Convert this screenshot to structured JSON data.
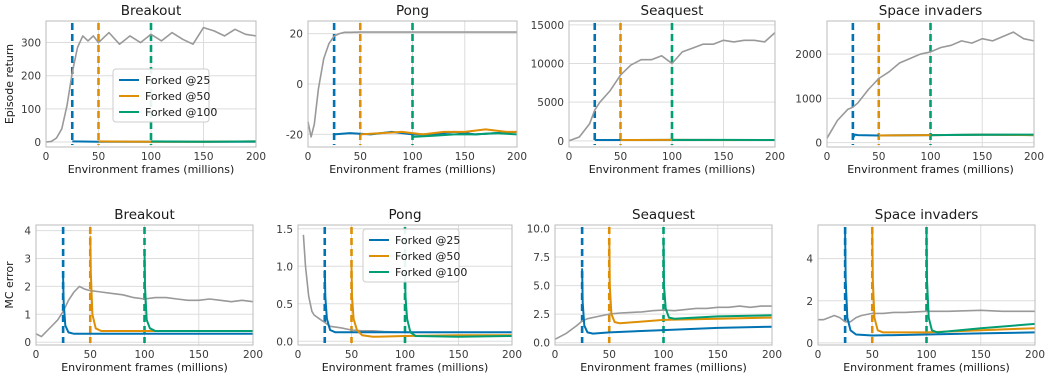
{
  "colors": {
    "base": "#999999",
    "f25": "#0173b2",
    "f50": "#de8f05",
    "f100": "#029e73",
    "grid": "#dddddd"
  },
  "chart_data": [
    {
      "type": "line",
      "title": "Breakout",
      "xlabel": "Environment frames (millions)",
      "ylabel": "Episode return",
      "xlim": [
        0,
        200
      ],
      "ylim": [
        -15,
        365
      ],
      "xticks": [
        0,
        50,
        100,
        150,
        200
      ],
      "yticks": [
        0,
        100,
        200,
        300
      ],
      "vlines": [
        25,
        50,
        100
      ],
      "legend": {
        "position": "center-left",
        "entries": [
          "Forked @25",
          "Forked @50",
          "Forked @100"
        ]
      },
      "series": [
        {
          "color": "base",
          "x": [
            0,
            5,
            10,
            15,
            20,
            25,
            30,
            35,
            40,
            45,
            50,
            60,
            70,
            80,
            90,
            100,
            110,
            120,
            130,
            140,
            150,
            160,
            170,
            180,
            190,
            200
          ],
          "y": [
            0,
            2,
            12,
            40,
            110,
            210,
            285,
            320,
            305,
            320,
            300,
            330,
            295,
            320,
            300,
            325,
            305,
            330,
            310,
            295,
            345,
            335,
            320,
            340,
            325,
            320
          ]
        },
        {
          "color": "f25",
          "x": [
            25,
            50,
            100,
            150,
            200
          ],
          "y": [
            2,
            1,
            1,
            1,
            1
          ]
        },
        {
          "color": "f50",
          "x": [
            50,
            100,
            150,
            200
          ],
          "y": [
            2,
            1,
            1,
            2
          ]
        },
        {
          "color": "f100",
          "x": [
            100,
            150,
            200
          ],
          "y": [
            2,
            1,
            2
          ]
        }
      ]
    },
    {
      "type": "line",
      "title": "Pong",
      "xlabel": "Environment frames (millions)",
      "ylabel": "",
      "xlim": [
        0,
        200
      ],
      "ylim": [
        -25,
        25
      ],
      "xticks": [
        0,
        50,
        100,
        150,
        200
      ],
      "yticks": [
        -20,
        0,
        20
      ],
      "vlines": [
        25,
        50,
        100
      ],
      "series": [
        {
          "color": "base",
          "x": [
            0,
            3,
            6,
            10,
            15,
            20,
            25,
            30,
            35,
            40,
            50,
            100,
            150,
            200
          ],
          "y": [
            -15,
            -21,
            -16,
            -2,
            10,
            16,
            19,
            20,
            20.5,
            20.5,
            20.6,
            20.6,
            20.6,
            20.6
          ]
        },
        {
          "color": "f25",
          "x": [
            25,
            40,
            60,
            80,
            100,
            120,
            140,
            160,
            180,
            200
          ],
          "y": [
            -20,
            -19.5,
            -20,
            -19,
            -20,
            -20,
            -19,
            -20,
            -19.5,
            -19
          ]
        },
        {
          "color": "f50",
          "x": [
            50,
            70,
            90,
            110,
            130,
            150,
            170,
            190,
            200
          ],
          "y": [
            -20,
            -19.5,
            -19,
            -20,
            -19,
            -19,
            -18,
            -19,
            -19
          ]
        },
        {
          "color": "f100",
          "x": [
            100,
            120,
            140,
            160,
            180,
            200
          ],
          "y": [
            -21,
            -20.5,
            -20,
            -20,
            -19.5,
            -20
          ]
        }
      ]
    },
    {
      "type": "line",
      "title": "Seaquest",
      "xlabel": "Environment frames (millions)",
      "ylabel": "",
      "xlim": [
        0,
        200
      ],
      "ylim": [
        -800,
        15500
      ],
      "xticks": [
        0,
        50,
        100,
        150,
        200
      ],
      "yticks": [
        0,
        5000,
        10000,
        15000
      ],
      "vlines": [
        25,
        50,
        100
      ],
      "series": [
        {
          "color": "base",
          "x": [
            0,
            10,
            20,
            25,
            30,
            40,
            50,
            60,
            70,
            80,
            90,
            100,
            110,
            120,
            130,
            140,
            150,
            160,
            170,
            180,
            190,
            200
          ],
          "y": [
            0,
            500,
            2200,
            4000,
            5000,
            6500,
            8500,
            9800,
            10500,
            10500,
            11000,
            10000,
            11500,
            12000,
            12500,
            12500,
            13000,
            12800,
            13000,
            13000,
            12800,
            14000
          ]
        },
        {
          "color": "f25",
          "x": [
            25,
            50,
            100,
            150,
            200
          ],
          "y": [
            100,
            100,
            120,
            100,
            100
          ]
        },
        {
          "color": "f50",
          "x": [
            50,
            100,
            150,
            200
          ],
          "y": [
            100,
            120,
            110,
            100
          ]
        },
        {
          "color": "f100",
          "x": [
            100,
            150,
            200
          ],
          "y": [
            100,
            120,
            100
          ]
        }
      ]
    },
    {
      "type": "line",
      "title": "Space invaders",
      "xlabel": "Environment frames (millions)",
      "ylabel": "",
      "xlim": [
        0,
        200
      ],
      "ylim": [
        -100,
        2750
      ],
      "xticks": [
        0,
        50,
        100,
        150,
        200
      ],
      "yticks": [
        0,
        1000,
        2000
      ],
      "vlines": [
        25,
        50,
        100
      ],
      "series": [
        {
          "color": "base",
          "x": [
            0,
            5,
            10,
            20,
            25,
            30,
            40,
            50,
            60,
            70,
            80,
            90,
            100,
            110,
            120,
            130,
            140,
            150,
            160,
            170,
            180,
            190,
            200
          ],
          "y": [
            100,
            300,
            500,
            750,
            800,
            900,
            1200,
            1450,
            1600,
            1800,
            1900,
            2000,
            2050,
            2150,
            2200,
            2300,
            2250,
            2350,
            2300,
            2400,
            2500,
            2350,
            2300
          ]
        },
        {
          "color": "f25",
          "x": [
            25,
            27,
            30,
            50,
            100,
            150,
            200
          ],
          "y": [
            100,
            180,
            170,
            160,
            170,
            180,
            170
          ]
        },
        {
          "color": "f50",
          "x": [
            50,
            100,
            150,
            200
          ],
          "y": [
            160,
            170,
            175,
            170
          ]
        },
        {
          "color": "f100",
          "x": [
            100,
            150,
            200
          ],
          "y": [
            170,
            175,
            180
          ]
        }
      ]
    },
    {
      "type": "line",
      "title": "Breakout",
      "xlabel": "Environment frames (millions)",
      "ylabel": "MC error",
      "xlim": [
        0,
        200
      ],
      "ylim": [
        -0.1,
        4.2
      ],
      "xticks": [
        0,
        50,
        100,
        150,
        200
      ],
      "yticks": [
        0,
        1,
        2,
        3,
        4
      ],
      "vlines": [
        25,
        50,
        100
      ],
      "series": [
        {
          "color": "base",
          "x": [
            0,
            5,
            10,
            15,
            20,
            25,
            30,
            35,
            40,
            45,
            50,
            60,
            70,
            80,
            90,
            100,
            110,
            120,
            130,
            140,
            150,
            160,
            170,
            180,
            190,
            200
          ],
          "y": [
            0.3,
            0.2,
            0.4,
            0.6,
            0.8,
            1.1,
            1.5,
            1.8,
            2.0,
            1.9,
            1.85,
            1.8,
            1.75,
            1.7,
            1.6,
            1.55,
            1.6,
            1.6,
            1.55,
            1.5,
            1.5,
            1.55,
            1.5,
            1.45,
            1.5,
            1.45
          ]
        },
        {
          "color": "f25",
          "x": [
            25,
            25.5,
            27,
            30,
            35,
            50,
            100,
            150,
            200
          ],
          "y": [
            2.3,
            1.4,
            0.6,
            0.35,
            0.3,
            0.3,
            0.3,
            0.3,
            0.3
          ]
        },
        {
          "color": "f50",
          "x": [
            50,
            50.5,
            52,
            55,
            60,
            100,
            150,
            200
          ],
          "y": [
            3.8,
            2.5,
            1.0,
            0.5,
            0.4,
            0.4,
            0.4,
            0.4
          ]
        },
        {
          "color": "f100",
          "x": [
            100,
            100.5,
            102,
            105,
            110,
            150,
            200
          ],
          "y": [
            3.3,
            2.0,
            0.8,
            0.5,
            0.4,
            0.4,
            0.4
          ]
        }
      ]
    },
    {
      "type": "line",
      "title": "Pong",
      "xlabel": "Environment frames (millions)",
      "ylabel": "",
      "xlim": [
        0,
        200
      ],
      "ylim": [
        -0.05,
        1.55
      ],
      "xticks": [
        0,
        50,
        100,
        150,
        200
      ],
      "yticks": [
        0.0,
        0.5,
        1.0,
        1.5
      ],
      "vlines": [
        25,
        50,
        100
      ],
      "legend": {
        "position": "top-center",
        "entries": [
          "Forked @25",
          "Forked @50",
          "Forked @100"
        ]
      },
      "series": [
        {
          "color": "base",
          "x": [
            5,
            7,
            10,
            13,
            15,
            20,
            25,
            30,
            40,
            50,
            60,
            70,
            80,
            100,
            120,
            150,
            200
          ],
          "y": [
            1.42,
            1.0,
            0.6,
            0.4,
            0.35,
            0.3,
            0.25,
            0.2,
            0.18,
            0.15,
            0.14,
            0.14,
            0.13,
            0.12,
            0.12,
            0.12,
            0.12
          ]
        },
        {
          "color": "f25",
          "x": [
            25,
            25.5,
            27,
            30,
            35,
            50,
            100,
            150,
            200
          ],
          "y": [
            0.95,
            0.6,
            0.3,
            0.15,
            0.12,
            0.12,
            0.12,
            0.12,
            0.12
          ]
        },
        {
          "color": "f50",
          "x": [
            50,
            50.5,
            52,
            55,
            60,
            70,
            100,
            150,
            200
          ],
          "y": [
            1.0,
            0.6,
            0.3,
            0.15,
            0.08,
            0.06,
            0.07,
            0.08,
            0.08
          ]
        },
        {
          "color": "f100",
          "x": [
            100,
            100.5,
            102,
            105,
            110,
            150,
            200
          ],
          "y": [
            0.9,
            0.6,
            0.3,
            0.12,
            0.07,
            0.06,
            0.07
          ]
        }
      ]
    },
    {
      "type": "line",
      "title": "Seaquest",
      "xlabel": "Environment frames (millions)",
      "ylabel": "",
      "xlim": [
        0,
        200
      ],
      "ylim": [
        -0.2,
        10.3
      ],
      "xticks": [
        0,
        50,
        100,
        150,
        200
      ],
      "yticks": [
        0.0,
        2.5,
        5.0,
        7.5,
        10.0
      ],
      "vlines": [
        25,
        50,
        100
      ],
      "series": [
        {
          "color": "base",
          "x": [
            0,
            10,
            20,
            25,
            30,
            40,
            50,
            60,
            70,
            80,
            90,
            100,
            110,
            120,
            130,
            140,
            150,
            160,
            170,
            180,
            190,
            200
          ],
          "y": [
            0.3,
            0.8,
            1.5,
            1.9,
            2.1,
            2.3,
            2.5,
            2.6,
            2.65,
            2.7,
            2.8,
            2.85,
            2.8,
            2.9,
            3.0,
            3.0,
            3.1,
            3.1,
            3.2,
            3.1,
            3.2,
            3.2
          ]
        },
        {
          "color": "f25",
          "x": [
            25,
            25.5,
            27,
            30,
            35,
            50,
            100,
            150,
            200
          ],
          "y": [
            6.5,
            3.5,
            1.5,
            0.9,
            0.8,
            0.9,
            1.1,
            1.3,
            1.4
          ]
        },
        {
          "color": "f50",
          "x": [
            50,
            50.5,
            52,
            55,
            60,
            100,
            150,
            200
          ],
          "y": [
            9.0,
            5.0,
            2.5,
            1.8,
            1.7,
            2.0,
            2.1,
            2.2
          ]
        },
        {
          "color": "f100",
          "x": [
            100,
            100.5,
            102,
            105,
            110,
            150,
            200
          ],
          "y": [
            9.2,
            5.0,
            3.0,
            2.2,
            2.1,
            2.3,
            2.4
          ]
        }
      ]
    },
    {
      "type": "line",
      "title": "Space invaders",
      "xlabel": "Environment frames (millions)",
      "ylabel": "",
      "xlim": [
        0,
        200
      ],
      "ylim": [
        -0.1,
        5.6
      ],
      "xticks": [
        0,
        50,
        100,
        150,
        200
      ],
      "yticks": [
        0,
        2,
        4
      ],
      "vlines": [
        25,
        50,
        100
      ],
      "series": [
        {
          "color": "base",
          "x": [
            0,
            5,
            10,
            15,
            20,
            25,
            30,
            35,
            40,
            50,
            60,
            70,
            80,
            100,
            120,
            150,
            170,
            200
          ],
          "y": [
            1.1,
            1.1,
            1.2,
            1.3,
            1.2,
            1.0,
            1.0,
            1.2,
            1.3,
            1.4,
            1.4,
            1.45,
            1.45,
            1.5,
            1.5,
            1.55,
            1.5,
            1.5
          ]
        },
        {
          "color": "f25",
          "x": [
            25,
            25.5,
            27,
            30,
            35,
            50,
            100,
            150,
            200
          ],
          "y": [
            5.2,
            3.0,
            1.2,
            0.6,
            0.4,
            0.35,
            0.4,
            0.45,
            0.5
          ]
        },
        {
          "color": "f50",
          "x": [
            50,
            50.5,
            52,
            55,
            60,
            100,
            150,
            200
          ],
          "y": [
            5.2,
            3.0,
            1.2,
            0.6,
            0.5,
            0.5,
            0.6,
            0.7
          ]
        },
        {
          "color": "f100",
          "x": [
            100,
            100.5,
            102,
            105,
            110,
            150,
            200
          ],
          "y": [
            5.3,
            3.0,
            1.2,
            0.6,
            0.5,
            0.7,
            0.9
          ]
        }
      ]
    }
  ]
}
